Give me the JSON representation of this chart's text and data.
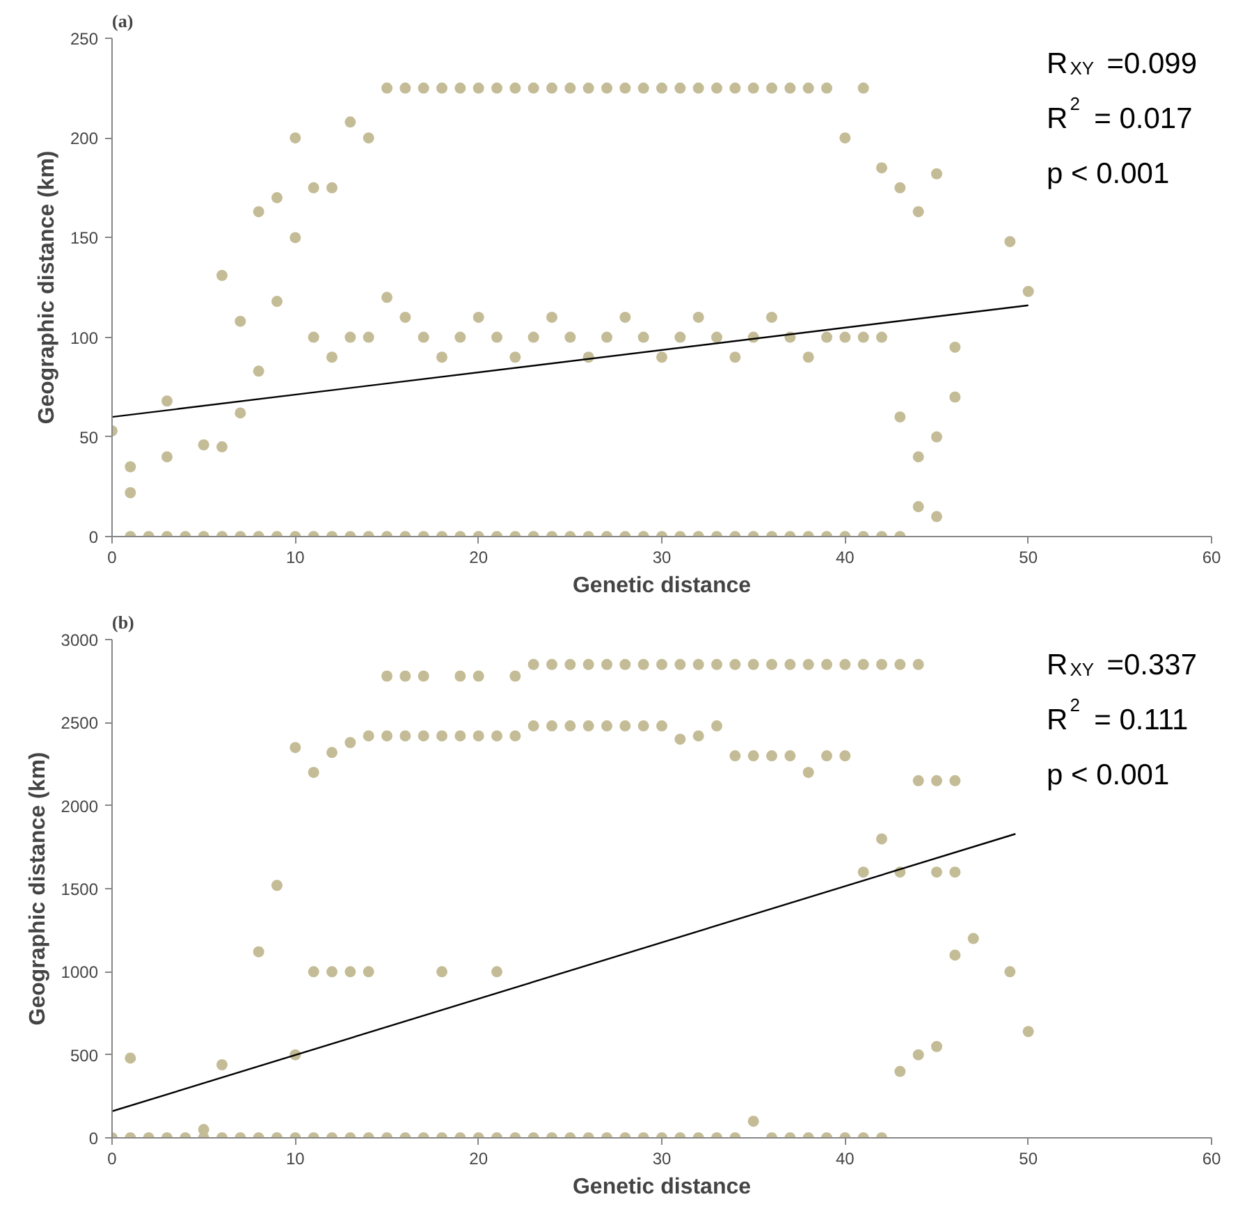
{
  "chart_data": [
    {
      "type": "scatter",
      "title": "(a)",
      "xlabel": "Genetic distance",
      "ylabel": "Geographic distance (km)",
      "xlim": [
        0,
        60
      ],
      "xticks": [
        0,
        10,
        20,
        30,
        40,
        50,
        60
      ],
      "ylim": [
        0,
        250
      ],
      "yticks": [
        0,
        50,
        100,
        150,
        200,
        250
      ],
      "grid": false,
      "marker": "circle",
      "annotations": [
        "R$_{XY}$ =0.099",
        "R$^{2}$ = 0.017",
        "p < 0.001"
      ],
      "series": [
        {
          "color": "#c4bc96",
          "x": [
            0,
            1,
            1,
            1,
            2,
            3,
            3,
            3,
            4,
            5,
            5,
            6,
            6,
            6,
            7,
            7,
            7,
            8,
            8,
            8,
            9,
            9,
            9,
            10,
            10,
            10,
            11,
            11,
            11,
            12,
            12,
            12,
            13,
            13,
            13,
            14,
            14,
            14,
            15,
            15,
            15,
            16,
            16,
            16,
            17,
            17,
            17,
            18,
            18,
            18,
            19,
            19,
            19,
            20,
            20,
            20,
            21,
            21,
            21,
            22,
            22,
            22,
            23,
            23,
            23,
            24,
            24,
            24,
            25,
            25,
            25,
            26,
            26,
            26,
            27,
            27,
            27,
            28,
            28,
            28,
            29,
            29,
            29,
            30,
            30,
            30,
            31,
            31,
            31,
            32,
            32,
            32,
            33,
            33,
            33,
            34,
            34,
            34,
            35,
            35,
            35,
            36,
            36,
            36,
            37,
            37,
            37,
            38,
            38,
            38,
            39,
            39,
            39,
            40,
            40,
            40,
            41,
            41,
            41,
            42,
            42,
            42,
            43,
            43,
            43,
            44,
            44,
            44,
            45,
            45,
            45,
            46,
            46,
            49,
            50
          ],
          "values": [
            53,
            35,
            22,
            0,
            0,
            68,
            40,
            0,
            0,
            46,
            0,
            131,
            45,
            0,
            108,
            62,
            0,
            163,
            83,
            0,
            170,
            118,
            0,
            200,
            150,
            0,
            175,
            100,
            0,
            175,
            90,
            0,
            208,
            100,
            0,
            200,
            100,
            0,
            225,
            120,
            0,
            225,
            110,
            0,
            225,
            100,
            0,
            225,
            90,
            0,
            225,
            100,
            0,
            225,
            110,
            0,
            225,
            100,
            0,
            225,
            90,
            0,
            225,
            100,
            0,
            225,
            110,
            0,
            225,
            100,
            0,
            225,
            90,
            0,
            225,
            100,
            0,
            225,
            110,
            0,
            225,
            100,
            0,
            225,
            90,
            0,
            225,
            100,
            0,
            225,
            110,
            0,
            225,
            100,
            0,
            225,
            90,
            0,
            225,
            100,
            0,
            225,
            110,
            0,
            225,
            100,
            0,
            225,
            90,
            0,
            225,
            100,
            0,
            200,
            100,
            0,
            225,
            100,
            0,
            185,
            100,
            0,
            175,
            60,
            0,
            163,
            40,
            15,
            182,
            50,
            10,
            95,
            70,
            148,
            123
          ]
        },
        {
          "type": "line",
          "color": "#000000",
          "marker": "none",
          "x": [
            0,
            50
          ],
          "values": [
            60,
            116
          ]
        }
      ]
    },
    {
      "type": "scatter",
      "title": "(b)",
      "xlabel": "Genetic distance",
      "ylabel": "Geographic distance (km)",
      "xlim": [
        0,
        60
      ],
      "xticks": [
        0,
        10,
        20,
        30,
        40,
        50,
        60
      ],
      "ylim": [
        0,
        3000
      ],
      "yticks": [
        0,
        500,
        1000,
        1500,
        2000,
        2500,
        3000
      ],
      "grid": false,
      "marker": "circle",
      "annotations": [
        "R$_{XY}$ =0.337",
        "R$^{2}$ = 0.111",
        "p < 0.001"
      ],
      "series": [
        {
          "color": "#c4bc96",
          "x": [
            0,
            1,
            1,
            2,
            3,
            4,
            5,
            5,
            6,
            6,
            7,
            8,
            8,
            9,
            9,
            10,
            10,
            10,
            11,
            11,
            11,
            12,
            12,
            12,
            13,
            13,
            13,
            14,
            14,
            14,
            15,
            15,
            15,
            16,
            16,
            16,
            17,
            17,
            17,
            18,
            18,
            18,
            19,
            19,
            19,
            20,
            20,
            20,
            21,
            21,
            21,
            22,
            22,
            22,
            23,
            23,
            23,
            24,
            24,
            24,
            25,
            25,
            25,
            26,
            26,
            26,
            27,
            27,
            27,
            28,
            28,
            28,
            29,
            29,
            29,
            30,
            30,
            30,
            31,
            31,
            31,
            32,
            32,
            32,
            33,
            33,
            33,
            34,
            34,
            34,
            35,
            35,
            35,
            36,
            36,
            36,
            37,
            37,
            37,
            38,
            38,
            38,
            39,
            39,
            39,
            40,
            40,
            40,
            41,
            41,
            41,
            42,
            42,
            42,
            43,
            43,
            43,
            44,
            44,
            44,
            45,
            45,
            45,
            46,
            46,
            46,
            47,
            49,
            50
          ],
          "values": [
            0,
            480,
            0,
            0,
            0,
            0,
            50,
            0,
            440,
            0,
            0,
            1120,
            0,
            1520,
            0,
            2350,
            500,
            0,
            2200,
            1000,
            0,
            2320,
            1000,
            0,
            2380,
            1000,
            0,
            2420,
            1000,
            0,
            2780,
            2420,
            0,
            2780,
            2420,
            0,
            2780,
            2420,
            0,
            2420,
            1000,
            0,
            2780,
            2420,
            0,
            2780,
            2420,
            0,
            2420,
            1000,
            0,
            2780,
            2420,
            0,
            2850,
            2480,
            0,
            2850,
            2480,
            0,
            2850,
            2480,
            0,
            2850,
            2480,
            0,
            2850,
            2480,
            0,
            2850,
            2480,
            0,
            2850,
            2480,
            0,
            2850,
            2480,
            0,
            2850,
            2400,
            0,
            2850,
            2420,
            0,
            2850,
            2480,
            0,
            2850,
            2300,
            0,
            2850,
            2300,
            100,
            2850,
            2300,
            0,
            2850,
            2300,
            0,
            2850,
            2200,
            0,
            2850,
            2300,
            0,
            2850,
            2300,
            0,
            2850,
            1600,
            0,
            2850,
            1800,
            0,
            2850,
            1600,
            400,
            2850,
            2150,
            500,
            2150,
            1600,
            550,
            2150,
            1600,
            1100,
            1200,
            1000,
            640
          ]
        },
        {
          "type": "line",
          "color": "#000000",
          "marker": "none",
          "x": [
            0,
            49.3
          ],
          "values": [
            160,
            1830
          ]
        }
      ]
    }
  ]
}
